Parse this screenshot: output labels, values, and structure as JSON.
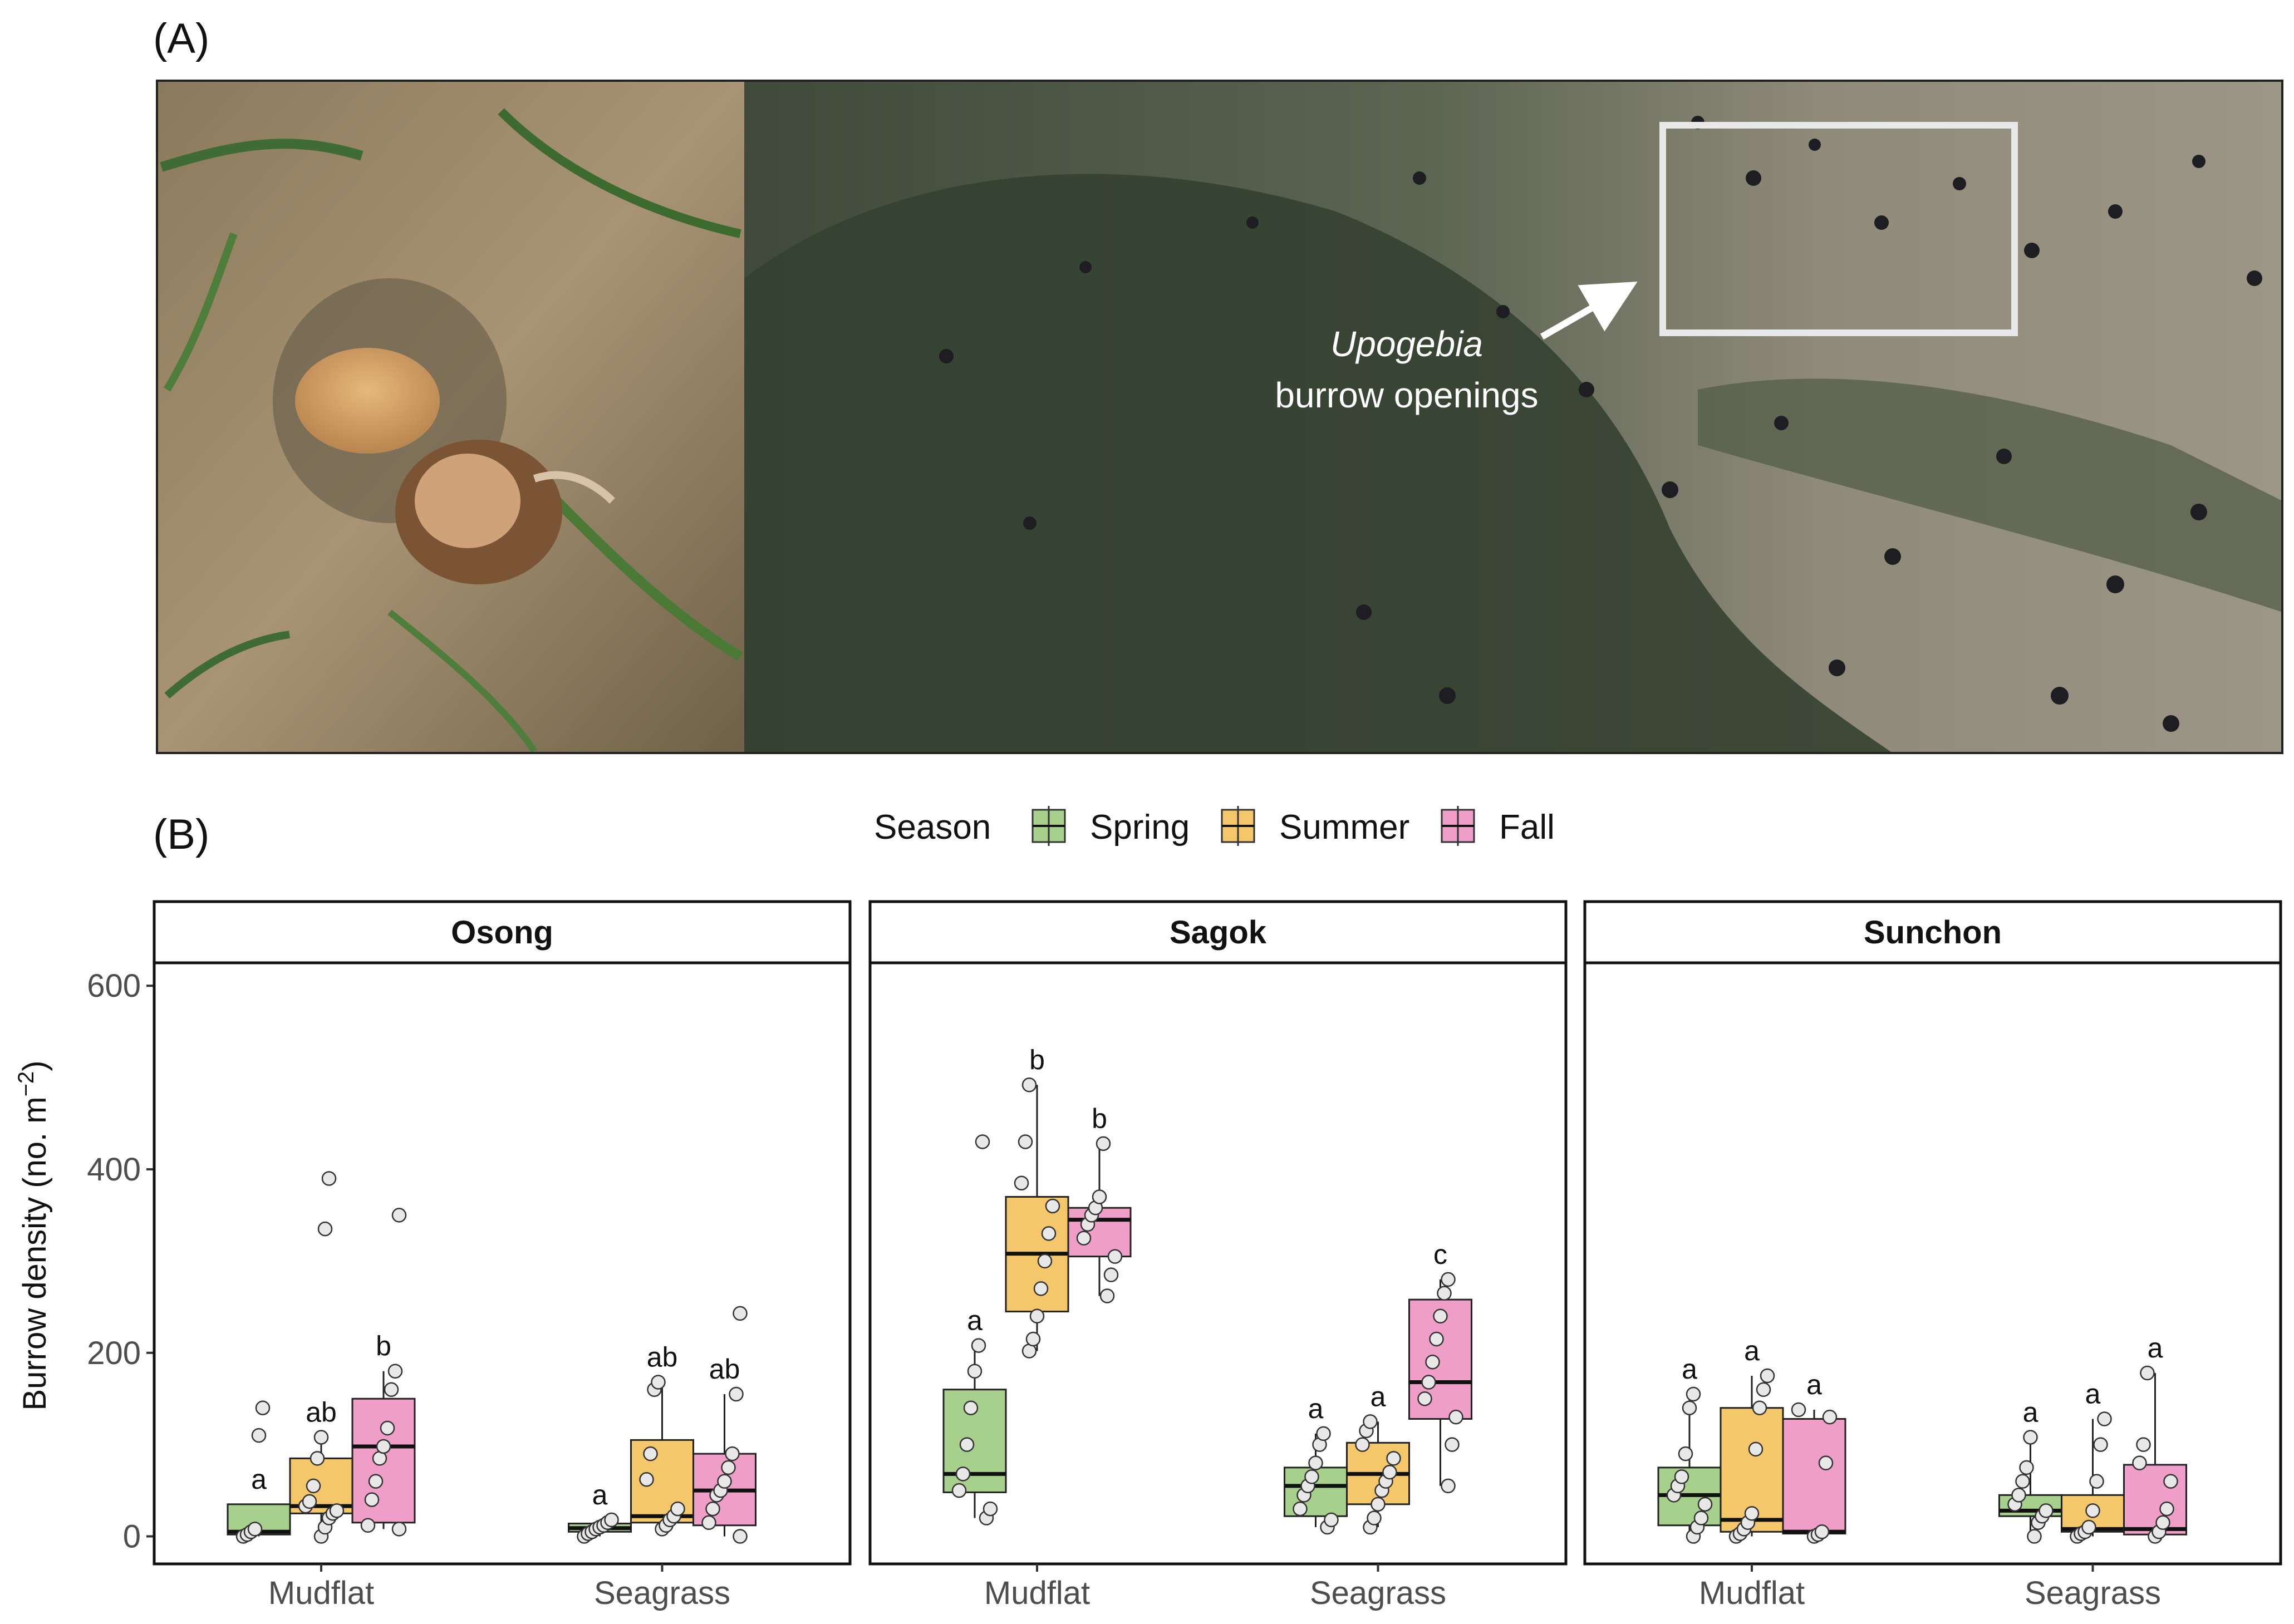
{
  "figure": {
    "panel_a_label": "(A)",
    "panel_b_label": "(B)",
    "photo_annotation_species": "Upogebia",
    "photo_annotation_text": "burrow openings"
  },
  "legend": {
    "title": "Season",
    "items": [
      {
        "label": "Spring",
        "color": "#a8d08d"
      },
      {
        "label": "Summer",
        "color": "#f5c76b"
      },
      {
        "label": "Fall",
        "color": "#ef9fc7"
      }
    ]
  },
  "chart_data": {
    "type": "boxplot",
    "ylabel": "Burrow density (no. m",
    "ylabel_sup": "−2",
    "ylabel_close": ")",
    "ylim": [
      -30,
      625
    ],
    "yticks": [
      0,
      200,
      400,
      600
    ],
    "ytick_labels": [
      "0",
      "200",
      "400",
      "600"
    ],
    "categories": [
      "Mudflat",
      "Seagrass"
    ],
    "seasons": [
      "Spring",
      "Summer",
      "Fall"
    ],
    "facets": [
      {
        "name": "Osong",
        "groups": [
          {
            "category": "Mudflat",
            "season": "Spring",
            "q1": 2,
            "median": 5,
            "q3": 35,
            "whisker_low": 0,
            "whisker_high": 35,
            "letter": "a",
            "points": [
              0,
              2,
              5,
              8,
              110,
              140
            ]
          },
          {
            "category": "Mudflat",
            "season": "Summer",
            "q1": 25,
            "median": 33,
            "q3": 85,
            "whisker_low": 0,
            "whisker_high": 108,
            "letter": "ab",
            "points": [
              0,
              10,
              20,
              25,
              28,
              33,
              38,
              55,
              85,
              108,
              335,
              390
            ]
          },
          {
            "category": "Mudflat",
            "season": "Fall",
            "q1": 15,
            "median": 98,
            "q3": 150,
            "whisker_low": 8,
            "whisker_high": 180,
            "letter": "b",
            "points": [
              8,
              12,
              40,
              60,
              85,
              98,
              118,
              160,
              180,
              350
            ]
          },
          {
            "category": "Seagrass",
            "season": "Spring",
            "q1": 5,
            "median": 9,
            "q3": 14,
            "whisker_low": 0,
            "whisker_high": 18,
            "letter": "a",
            "points": [
              0,
              3,
              5,
              8,
              10,
              12,
              15,
              18
            ]
          },
          {
            "category": "Seagrass",
            "season": "Summer",
            "q1": 15,
            "median": 22,
            "q3": 105,
            "whisker_low": 8,
            "whisker_high": 168,
            "letter": "ab",
            "points": [
              8,
              12,
              18,
              22,
              30,
              62,
              90,
              160,
              168
            ]
          },
          {
            "category": "Seagrass",
            "season": "Fall",
            "q1": 12,
            "median": 50,
            "q3": 90,
            "whisker_low": 0,
            "whisker_high": 155,
            "letter": "ab",
            "points": [
              0,
              15,
              30,
              45,
              50,
              60,
              75,
              90,
              155,
              243
            ]
          }
        ]
      },
      {
        "name": "Sagok",
        "groups": [
          {
            "category": "Mudflat",
            "season": "Spring",
            "q1": 48,
            "median": 68,
            "q3": 160,
            "whisker_low": 20,
            "whisker_high": 208,
            "letter": "a",
            "points": [
              20,
              30,
              50,
              68,
              100,
              140,
              180,
              208,
              430
            ]
          },
          {
            "category": "Mudflat",
            "season": "Summer",
            "q1": 245,
            "median": 308,
            "q3": 370,
            "whisker_low": 202,
            "whisker_high": 492,
            "letter": "b",
            "points": [
              202,
              215,
              240,
              270,
              300,
              330,
              360,
              385,
              430,
              492
            ]
          },
          {
            "category": "Mudflat",
            "season": "Fall",
            "q1": 305,
            "median": 345,
            "q3": 358,
            "whisker_low": 262,
            "whisker_high": 428,
            "letter": "b",
            "points": [
              262,
              285,
              305,
              325,
              340,
              350,
              358,
              370,
              428
            ]
          },
          {
            "category": "Seagrass",
            "season": "Spring",
            "q1": 22,
            "median": 55,
            "q3": 75,
            "whisker_low": 10,
            "whisker_high": 112,
            "letter": "a",
            "points": [
              10,
              18,
              30,
              45,
              55,
              65,
              80,
              100,
              112
            ]
          },
          {
            "category": "Seagrass",
            "season": "Summer",
            "q1": 35,
            "median": 68,
            "q3": 102,
            "whisker_low": 10,
            "whisker_high": 125,
            "letter": "a",
            "points": [
              10,
              20,
              35,
              50,
              60,
              70,
              85,
              100,
              115,
              125
            ]
          },
          {
            "category": "Seagrass",
            "season": "Fall",
            "q1": 128,
            "median": 168,
            "q3": 258,
            "whisker_low": 55,
            "whisker_high": 280,
            "letter": "c",
            "points": [
              55,
              100,
              130,
              150,
              168,
              190,
              215,
              240,
              265,
              280
            ]
          }
        ]
      },
      {
        "name": "Sunchon",
        "groups": [
          {
            "category": "Mudflat",
            "season": "Spring",
            "q1": 12,
            "median": 45,
            "q3": 75,
            "whisker_low": 0,
            "whisker_high": 155,
            "letter": "a",
            "points": [
              0,
              10,
              20,
              35,
              45,
              55,
              65,
              90,
              140,
              155
            ]
          },
          {
            "category": "Mudflat",
            "season": "Summer",
            "q1": 5,
            "median": 18,
            "q3": 140,
            "whisker_low": 0,
            "whisker_high": 175,
            "letter": "a",
            "points": [
              0,
              3,
              8,
              15,
              25,
              95,
              140,
              160,
              175
            ]
          },
          {
            "category": "Mudflat",
            "season": "Fall",
            "q1": 3,
            "median": 5,
            "q3": 128,
            "whisker_low": 0,
            "whisker_high": 138,
            "letter": "a",
            "points": [
              0,
              2,
              5,
              80,
              130,
              138
            ]
          },
          {
            "category": "Seagrass",
            "season": "Spring",
            "q1": 22,
            "median": 28,
            "q3": 45,
            "whisker_low": 0,
            "whisker_high": 108,
            "letter": "a",
            "points": [
              0,
              15,
              22,
              28,
              35,
              45,
              60,
              75,
              108
            ]
          },
          {
            "category": "Seagrass",
            "season": "Summer",
            "q1": 5,
            "median": 8,
            "q3": 45,
            "whisker_low": 0,
            "whisker_high": 128,
            "letter": "a",
            "points": [
              0,
              3,
              5,
              10,
              28,
              60,
              100,
              128
            ]
          },
          {
            "category": "Seagrass",
            "season": "Fall",
            "q1": 2,
            "median": 8,
            "q3": 78,
            "whisker_low": 0,
            "whisker_high": 178,
            "letter": "a",
            "points": [
              0,
              5,
              15,
              30,
              60,
              80,
              100,
              178
            ]
          }
        ]
      }
    ]
  }
}
